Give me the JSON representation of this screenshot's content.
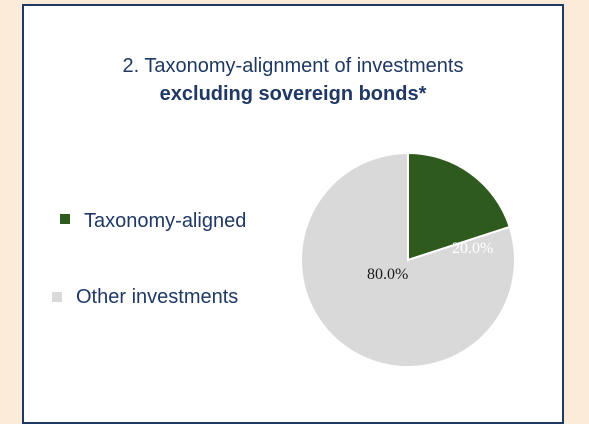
{
  "chart_data": {
    "type": "pie",
    "title_line1": "2. Taxonomy-alignment of investments",
    "title_line2": "excluding sovereign bonds*",
    "series": [
      {
        "name": "Taxonomy-aligned",
        "value": 20.0,
        "label": "20.0%",
        "color": "#2e5a1e"
      },
      {
        "name": "Other investments",
        "value": 80.0,
        "label": "80.0%",
        "color": "#d9d9d9"
      }
    ],
    "legend_position": "left"
  },
  "colors": {
    "title": "#1f3864",
    "panel_border": "#1f3864",
    "background": "#fdebd9"
  }
}
